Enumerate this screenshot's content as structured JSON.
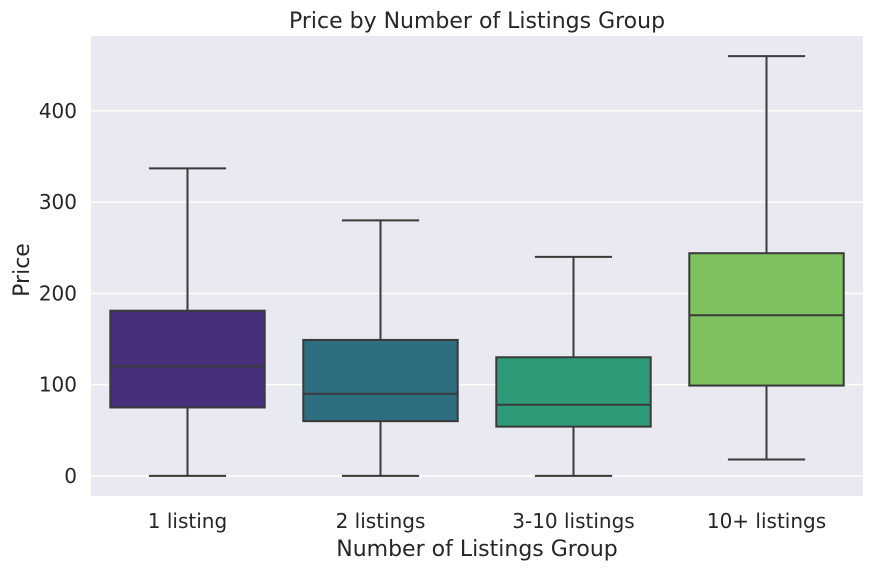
{
  "chart_data": {
    "type": "box",
    "title": "Price by Number of Listings Group",
    "xlabel": "Number of Listings Group",
    "ylabel": "Price",
    "categories": [
      "1 listing",
      "2 listings",
      "3-10 listings",
      "10+ listings"
    ],
    "boxes": [
      {
        "category": "1 listing",
        "whisker_low": 0,
        "q1": 75,
        "median": 120,
        "q3": 181,
        "whisker_high": 337,
        "color": "#472f7d"
      },
      {
        "category": "2 listings",
        "whisker_low": 0,
        "q1": 60,
        "median": 90,
        "q3": 149,
        "whisker_high": 280,
        "color": "#2f6e81"
      },
      {
        "category": "3-10 listings",
        "whisker_low": 0,
        "q1": 54,
        "median": 78,
        "q3": 130,
        "whisker_high": 240,
        "color": "#2d9a78"
      },
      {
        "category": "10+ listings",
        "whisker_low": 18,
        "q1": 99,
        "median": 176,
        "q3": 244,
        "whisker_high": 460,
        "color": "#7ec25f"
      }
    ],
    "yticks": [
      0,
      100,
      200,
      300,
      400
    ],
    "ylim": [
      -22,
      482
    ],
    "grid": true,
    "background": "#e9e9f1",
    "gridline_color": "#ffffff",
    "line_color": "#3a3a3a"
  }
}
